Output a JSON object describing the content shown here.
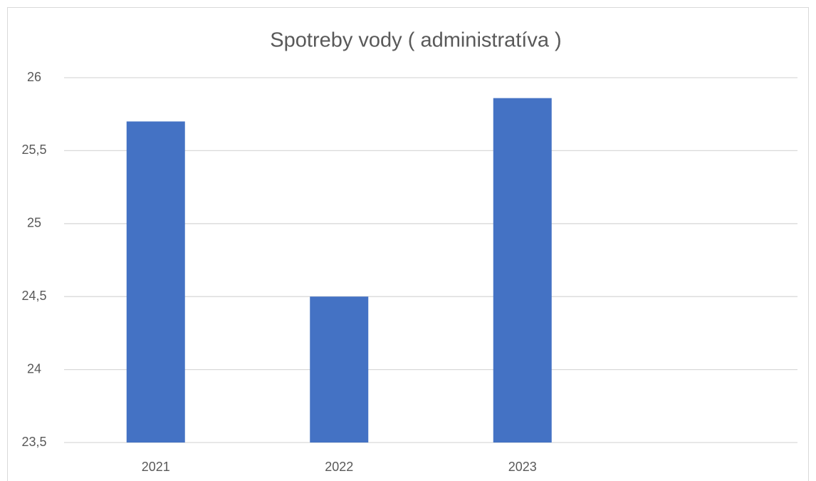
{
  "chart_data": {
    "type": "bar",
    "title": "Spotreby vody ( administratíva )",
    "categories": [
      "2021",
      "2022",
      "2023",
      null
    ],
    "values": [
      25.7,
      24.5,
      25.86,
      null
    ],
    "color": "#4472c4",
    "ylim": [
      23.5,
      26
    ],
    "yticks": [
      {
        "value": 23.5,
        "label": "23,5"
      },
      24,
      {
        "value": 24.5,
        "label": "24,5"
      },
      25,
      {
        "value": 25.5,
        "label": "25,5"
      },
      26
    ],
    "grid": true
  }
}
